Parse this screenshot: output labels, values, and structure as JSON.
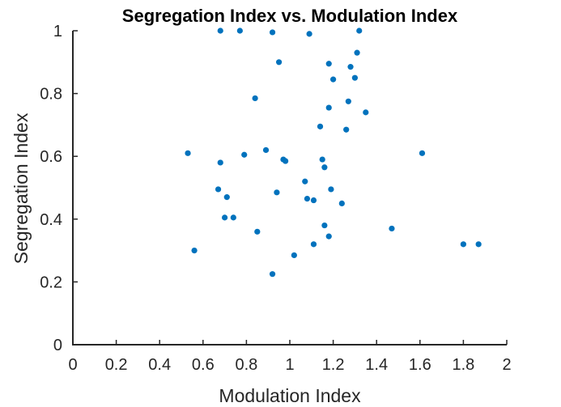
{
  "chart_data": {
    "type": "scatter",
    "title": "Segregation Index vs. Modulation Index",
    "xlabel": "Modulation Index",
    "ylabel": "Segregation Index",
    "xlim": [
      0,
      2
    ],
    "ylim": [
      0,
      1
    ],
    "xticks": [
      0,
      0.2,
      0.4,
      0.6,
      0.8,
      1,
      1.2,
      1.4,
      1.6,
      1.8,
      2
    ],
    "xtick_labels": [
      "0",
      "0.2",
      "0.4",
      "0.6",
      "0.8",
      "1",
      "1.2",
      "1.4",
      "1.6",
      "1.8",
      "2"
    ],
    "yticks": [
      0,
      0.2,
      0.4,
      0.6,
      0.8,
      1
    ],
    "ytick_labels": [
      "0",
      "0.2",
      "0.4",
      "0.6",
      "0.8",
      "1"
    ],
    "grid": false,
    "marker_color": "#0072BD",
    "points": [
      {
        "x": 0.68,
        "y": 1.0
      },
      {
        "x": 0.77,
        "y": 1.0
      },
      {
        "x": 0.92,
        "y": 0.995
      },
      {
        "x": 1.09,
        "y": 0.99
      },
      {
        "x": 1.32,
        "y": 1.0
      },
      {
        "x": 0.95,
        "y": 0.9
      },
      {
        "x": 1.18,
        "y": 0.895
      },
      {
        "x": 1.31,
        "y": 0.93
      },
      {
        "x": 1.28,
        "y": 0.885
      },
      {
        "x": 1.3,
        "y": 0.85
      },
      {
        "x": 1.2,
        "y": 0.845
      },
      {
        "x": 0.84,
        "y": 0.785
      },
      {
        "x": 1.27,
        "y": 0.775
      },
      {
        "x": 1.18,
        "y": 0.755
      },
      {
        "x": 1.35,
        "y": 0.74
      },
      {
        "x": 1.14,
        "y": 0.695
      },
      {
        "x": 1.26,
        "y": 0.685
      },
      {
        "x": 0.53,
        "y": 0.61
      },
      {
        "x": 0.79,
        "y": 0.605
      },
      {
        "x": 0.89,
        "y": 0.62
      },
      {
        "x": 1.61,
        "y": 0.61
      },
      {
        "x": 0.68,
        "y": 0.58
      },
      {
        "x": 0.97,
        "y": 0.59
      },
      {
        "x": 0.98,
        "y": 0.585
      },
      {
        "x": 1.15,
        "y": 0.59
      },
      {
        "x": 1.16,
        "y": 0.565
      },
      {
        "x": 1.07,
        "y": 0.52
      },
      {
        "x": 0.67,
        "y": 0.495
      },
      {
        "x": 0.71,
        "y": 0.47
      },
      {
        "x": 0.94,
        "y": 0.485
      },
      {
        "x": 1.08,
        "y": 0.465
      },
      {
        "x": 1.11,
        "y": 0.46
      },
      {
        "x": 1.19,
        "y": 0.495
      },
      {
        "x": 1.24,
        "y": 0.45
      },
      {
        "x": 0.7,
        "y": 0.405
      },
      {
        "x": 0.74,
        "y": 0.405
      },
      {
        "x": 0.85,
        "y": 0.36
      },
      {
        "x": 1.16,
        "y": 0.38
      },
      {
        "x": 1.18,
        "y": 0.345
      },
      {
        "x": 1.47,
        "y": 0.37
      },
      {
        "x": 1.11,
        "y": 0.32
      },
      {
        "x": 0.56,
        "y": 0.3
      },
      {
        "x": 1.02,
        "y": 0.285
      },
      {
        "x": 0.92,
        "y": 0.225
      },
      {
        "x": 1.8,
        "y": 0.32
      },
      {
        "x": 1.87,
        "y": 0.32
      }
    ]
  }
}
